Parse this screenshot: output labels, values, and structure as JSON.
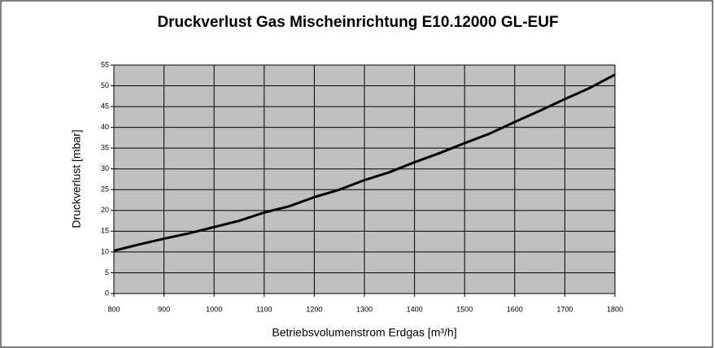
{
  "chart_data": {
    "type": "line",
    "title": "Druckverlust Gas Mischeinrichtung E10.12000 GL-EUF",
    "x_label": "Betriebsvolumenstrom Erdgas [m³/h]",
    "y_label": "Druckverlust [mbar]",
    "x": [
      800,
      850,
      900,
      950,
      1000,
      1050,
      1100,
      1150,
      1200,
      1250,
      1300,
      1350,
      1400,
      1450,
      1500,
      1550,
      1600,
      1650,
      1700,
      1750,
      1800
    ],
    "series": [
      {
        "color": "#000000",
        "values": [
          10.3,
          11.8,
          13.2,
          14.5,
          16,
          17.5,
          19.5,
          21,
          23.2,
          25,
          27.3,
          29.2,
          31.6,
          33.8,
          36.2,
          38.5,
          41.3,
          44,
          46.8,
          49.5,
          52.7
        ]
      }
    ],
    "xlim": [
      800,
      1800
    ],
    "xticks": [
      800,
      900,
      1000,
      1100,
      1200,
      1300,
      1400,
      1500,
      1600,
      1700,
      1800
    ],
    "ylim": [
      0,
      55
    ],
    "yticks": [
      0,
      5,
      10,
      15,
      20,
      25,
      30,
      35,
      40,
      45,
      50,
      55
    ],
    "grid": true,
    "plot_background": "#c0c0c0"
  }
}
